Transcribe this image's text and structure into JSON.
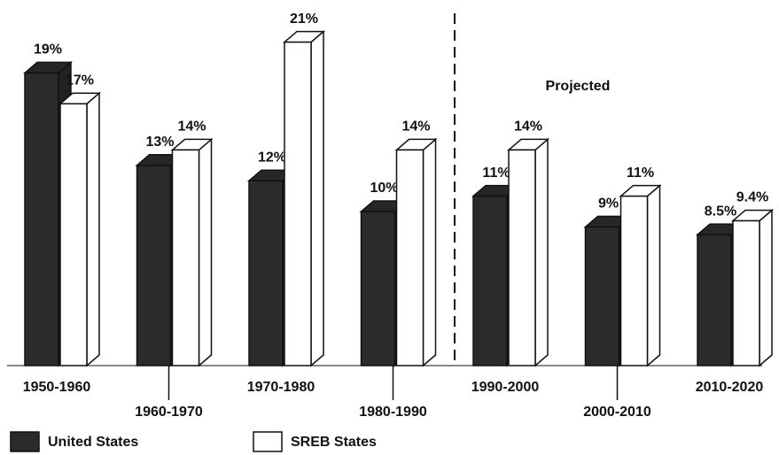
{
  "chart_data": {
    "type": "bar",
    "annotation": "Projected",
    "categories": [
      "1950-1960",
      "1960-1970",
      "1970-1980",
      "1980-1990",
      "1990-2000",
      "2000-2010",
      "2010-2020"
    ],
    "series": [
      {
        "name": "United States",
        "color": "#2b2b2b",
        "values": [
          19,
          13,
          12,
          10,
          11,
          9,
          8.5
        ],
        "value_labels": [
          "19%",
          "13%",
          "12%",
          "10%",
          "11%",
          "9%",
          "8.5%"
        ]
      },
      {
        "name": "SREB States",
        "color": "#ffffff",
        "values": [
          17,
          14,
          21,
          14,
          14,
          11,
          9.4
        ],
        "value_labels": [
          "17%",
          "14%",
          "21%",
          "14%",
          "14%",
          "11%",
          "9.4%"
        ]
      }
    ]
  }
}
